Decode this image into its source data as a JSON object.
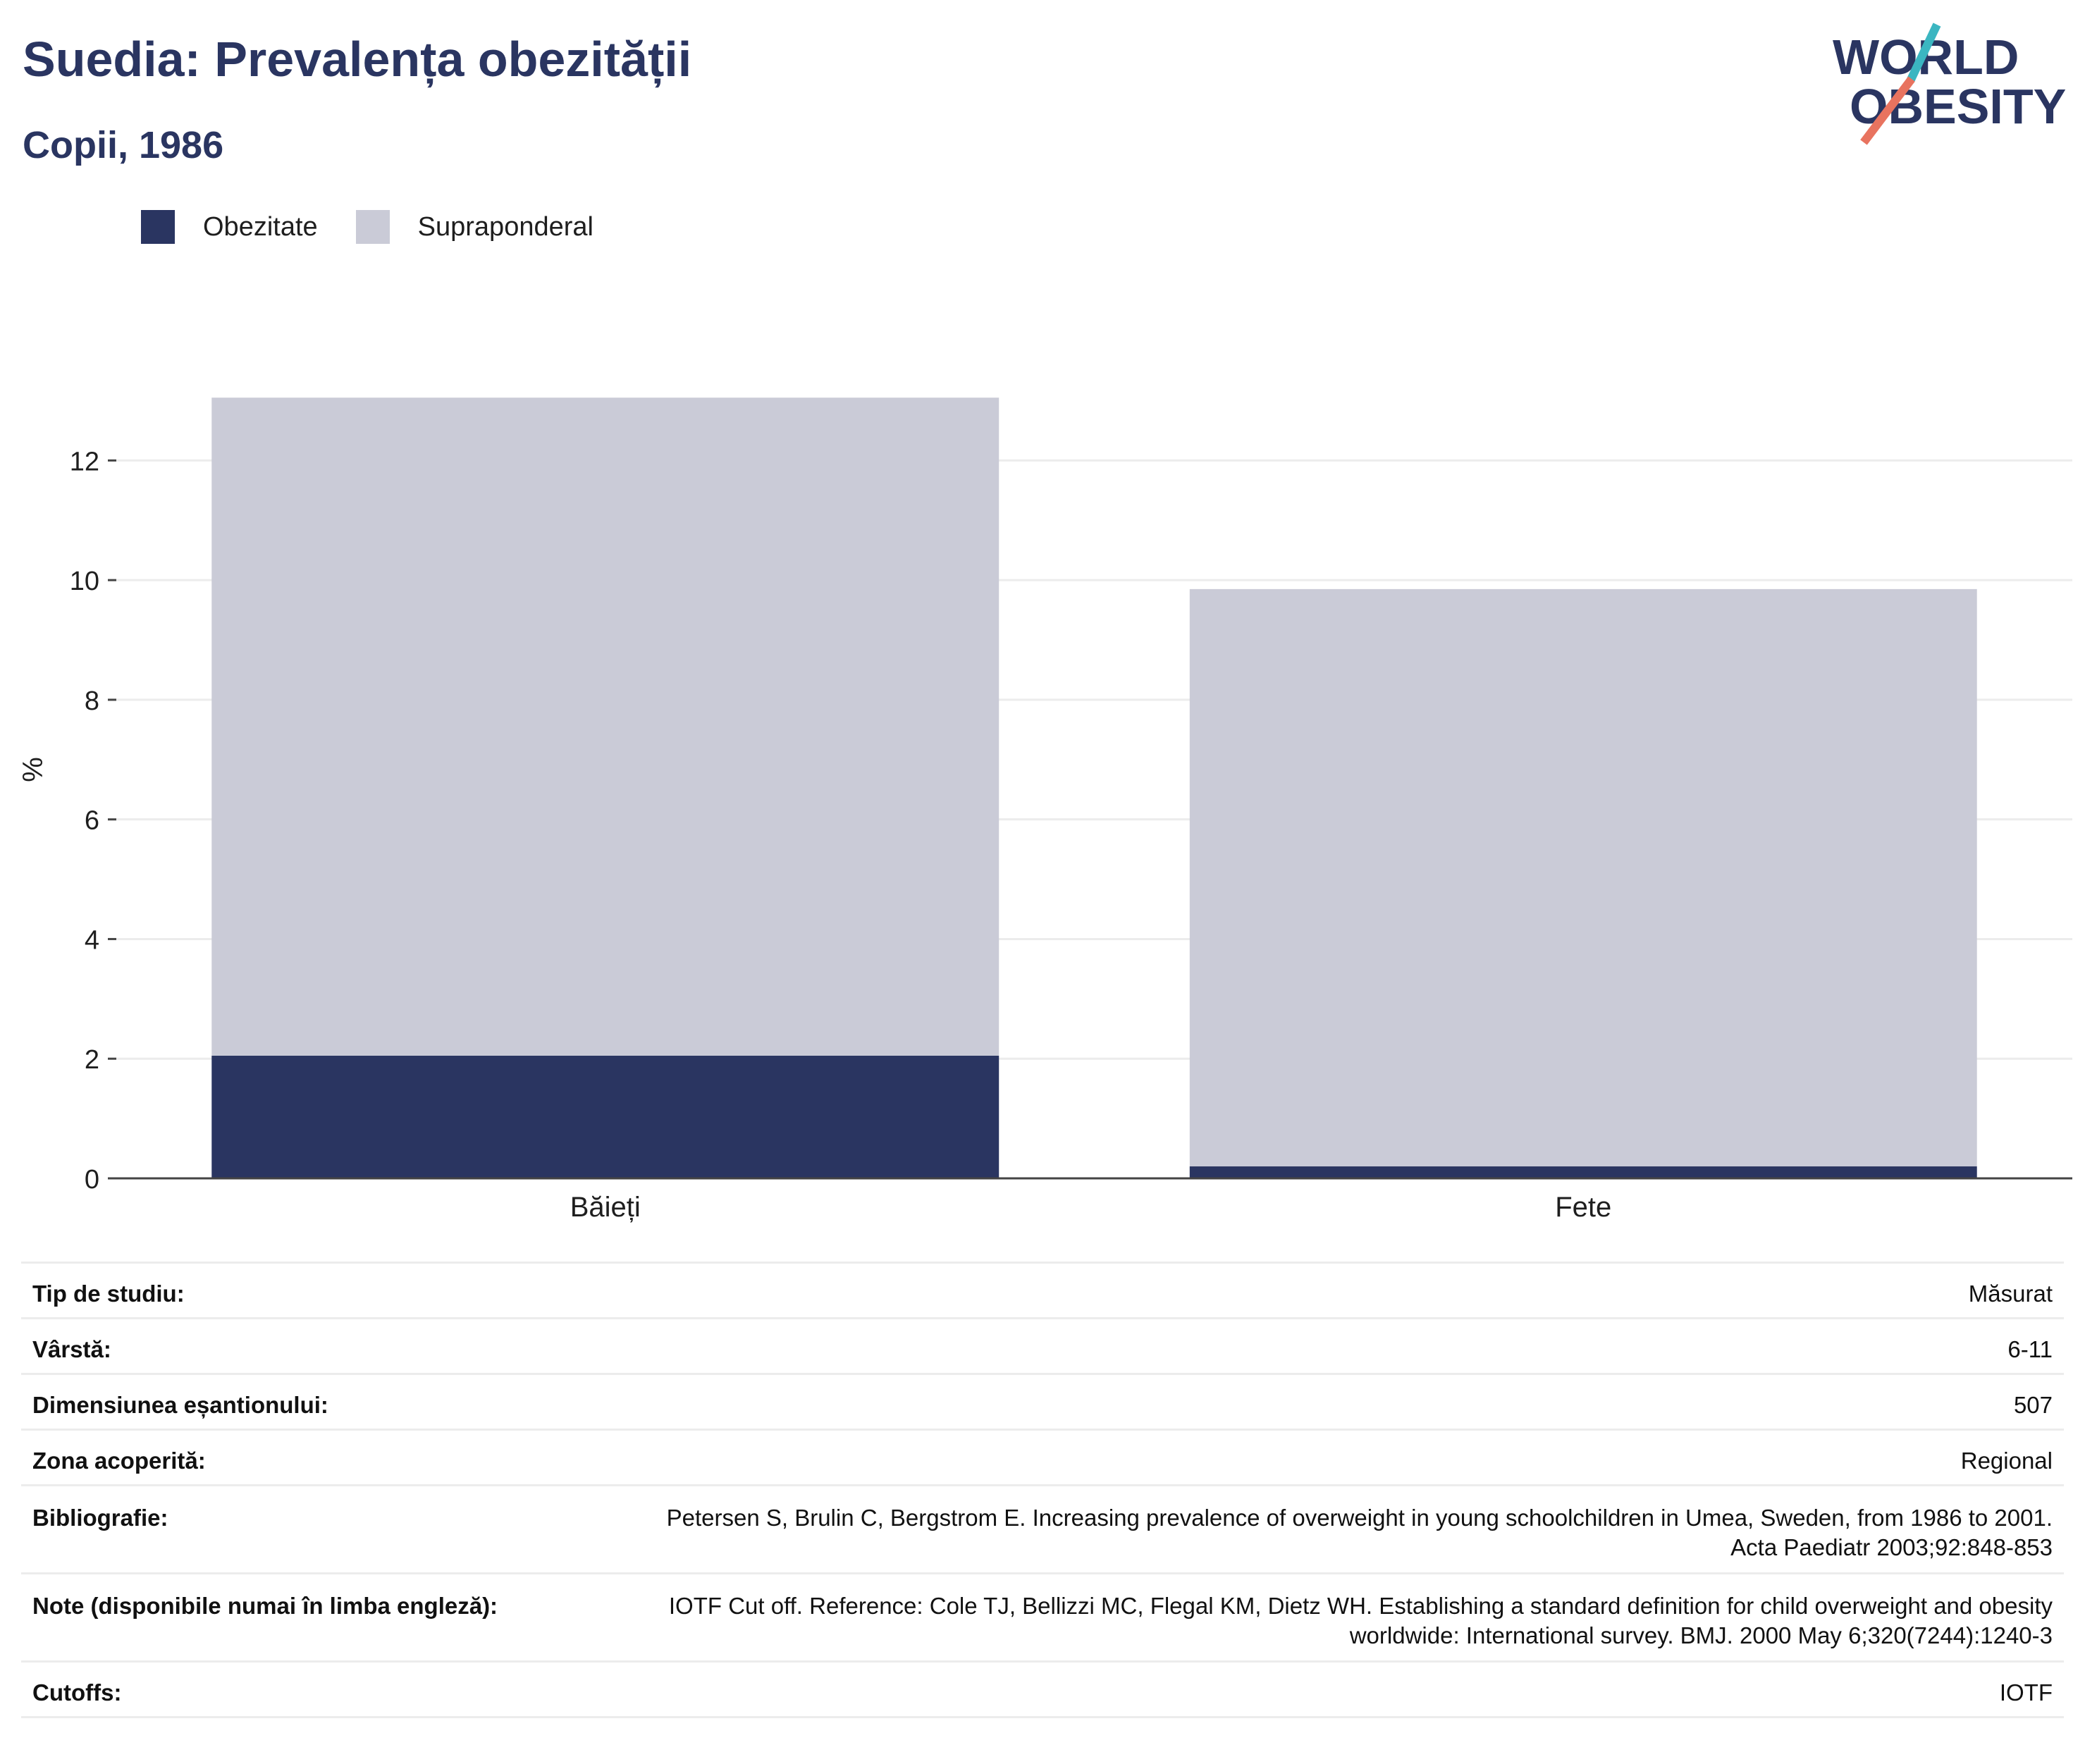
{
  "header": {
    "title": "Suedia: Prevalența obezității",
    "subtitle": "Copii, 1986"
  },
  "logo": {
    "line1": "WORLD",
    "line2": "OBESITY",
    "accent_teal": "#3bb6c1",
    "accent_coral": "#e8735f"
  },
  "legend": {
    "items": [
      {
        "label": "Obezitate",
        "color": "#2a3561"
      },
      {
        "label": "Supraponderal",
        "color": "#cacbd7"
      }
    ]
  },
  "chart_data": {
    "type": "bar",
    "stacked": true,
    "categories": [
      "Băieți",
      "Fete"
    ],
    "series": [
      {
        "name": "Obezitate",
        "values": [
          2.05,
          0.2
        ],
        "color": "#2a3561"
      },
      {
        "name": "Supraponderal",
        "values": [
          11.0,
          9.65
        ],
        "color": "#cacbd7"
      }
    ],
    "ylabel": "%",
    "ylim": [
      0,
      13.1
    ],
    "yticks": [
      0,
      2,
      4,
      6,
      8,
      10,
      12
    ],
    "grid": true,
    "legend_position": "top-left"
  },
  "info": {
    "rows": [
      {
        "key": "Tip de studiu:",
        "value": "Măsurat"
      },
      {
        "key": "Vârstă:",
        "value": "6-11"
      },
      {
        "key": "Dimensiunea eșantionului:",
        "value": "507"
      },
      {
        "key": "Zona acoperită:",
        "value": "Regional"
      },
      {
        "key": "Bibliografie:",
        "value_line1": "Petersen S, Brulin C, Bergstrom E. Increasing prevalence of overweight in young schoolchildren in Umea, Sweden, from 1986 to 2001.",
        "value_line2": "Acta Paediatr 2003;92:848-853"
      },
      {
        "key": "Note (disponibile numai în limba engleză):",
        "value_line1": "IOTF Cut off. Reference: Cole TJ, Bellizzi MC, Flegal KM, Dietz WH. Establishing a standard definition for child overweight and obesity",
        "value_line2": "worldwide: International survey. BMJ. 2000 May 6;320(7244):1240-3"
      },
      {
        "key": "Cutoffs:",
        "value": "IOTF"
      }
    ]
  }
}
